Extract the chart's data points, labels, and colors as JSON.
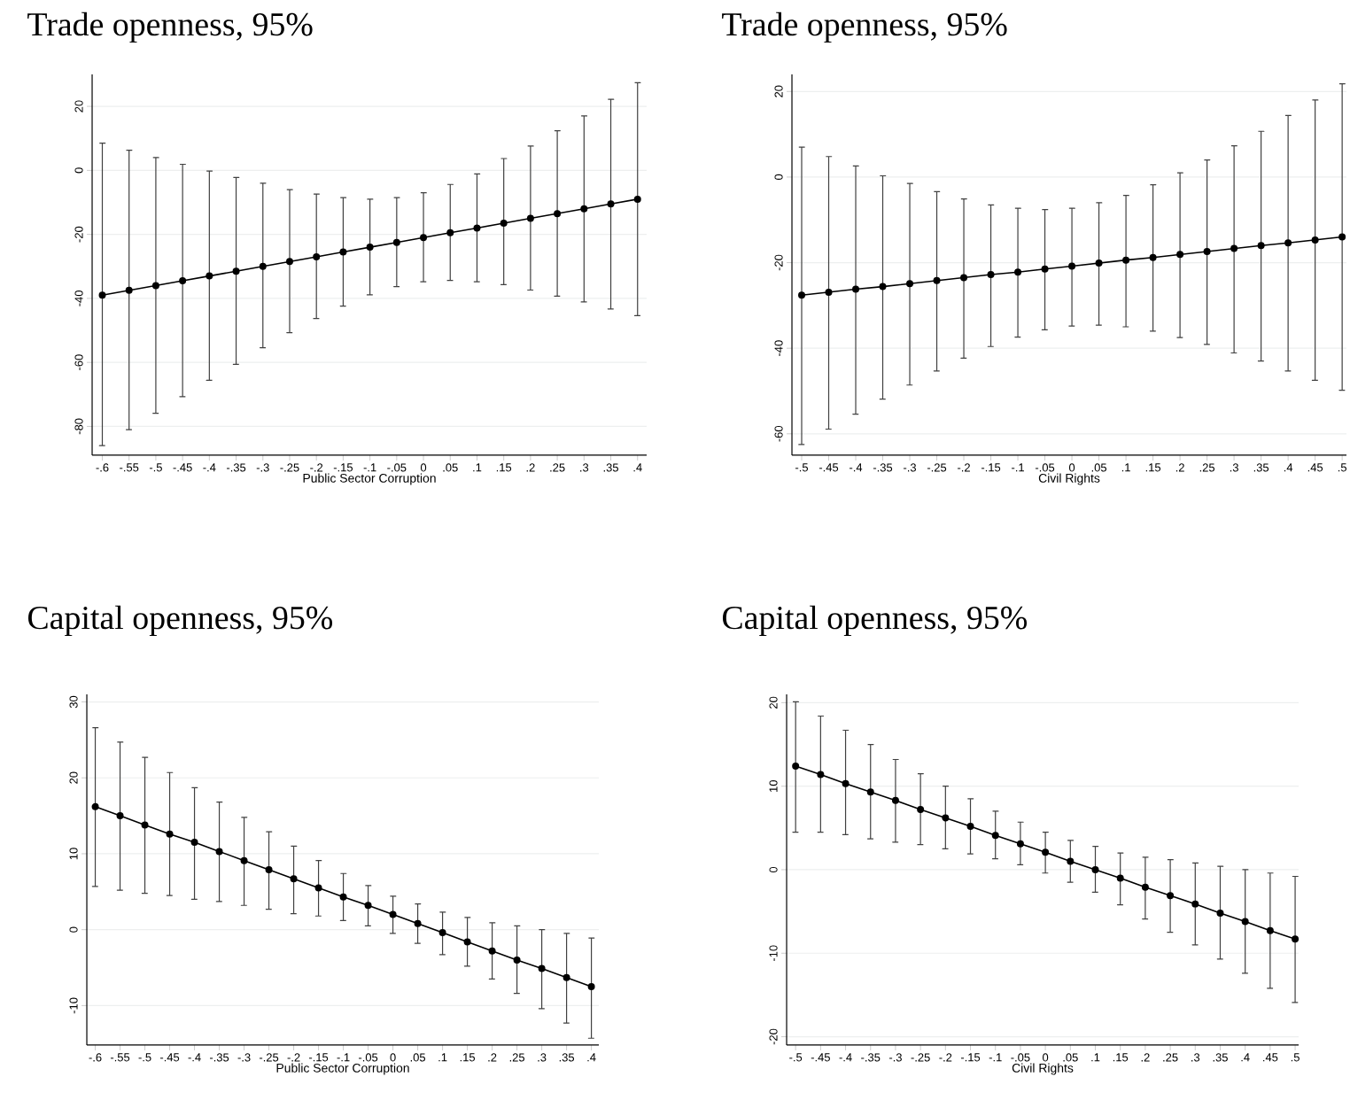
{
  "chart_data": [
    {
      "type": "line",
      "title": "Trade openness, 95%",
      "xlabel": "Public Sector Corruption",
      "marker": "circle",
      "grid": "y",
      "x": [
        -0.6,
        -0.55,
        -0.5,
        -0.45,
        -0.4,
        -0.35,
        -0.3,
        -0.25,
        -0.2,
        -0.15,
        -0.1,
        -0.05,
        0,
        0.05,
        0.1,
        0.15,
        0.2,
        0.25,
        0.3,
        0.35,
        0.4
      ],
      "series": [
        {
          "color": "#000000",
          "values": [
            -39,
            -37.5,
            -36,
            -34.5,
            -33,
            -31.5,
            -30,
            -28.5,
            -27,
            -25.5,
            -24,
            -22.5,
            -21,
            -19.5,
            -18,
            -16.5,
            -15,
            -13.5,
            -12,
            -10.5,
            -9
          ],
          "errors": [
            [
              -86,
              8.5
            ],
            [
              -81,
              6.3
            ],
            [
              -75.9,
              4
            ],
            [
              -70.7,
              1.9
            ],
            [
              -65.6,
              -0.2
            ],
            [
              -60.6,
              -2.2
            ],
            [
              -55.4,
              -4
            ],
            [
              -50.7,
              -6
            ],
            [
              -46.3,
              -7.4
            ],
            [
              -42.4,
              -8.5
            ],
            [
              -38.9,
              -9
            ],
            [
              -36.3,
              -8.5
            ],
            [
              -34.8,
              -7
            ],
            [
              -34.4,
              -4.4
            ],
            [
              -34.8,
              -1.1
            ],
            [
              -35.7,
              3.7
            ],
            [
              -37.4,
              7.6
            ],
            [
              -39.3,
              12.4
            ],
            [
              -41.1,
              17
            ],
            [
              -43.3,
              22.2
            ],
            [
              -45.4,
              27.4
            ]
          ]
        }
      ],
      "xlim": [
        -0.619,
        0.417
      ],
      "ylim": [
        -89,
        30
      ],
      "xticks": [
        {
          "value": -0.6,
          "label": "-.6"
        },
        {
          "value": -0.55,
          "label": "-.55"
        },
        {
          "value": -0.5,
          "label": "-.5"
        },
        {
          "value": -0.45,
          "label": "-.45"
        },
        {
          "value": -0.4,
          "label": "-.4"
        },
        {
          "value": -0.35,
          "label": "-.35"
        },
        {
          "value": -0.3,
          "label": "-.3"
        },
        {
          "value": -0.25,
          "label": "-.25"
        },
        {
          "value": -0.2,
          "label": "-.2"
        },
        {
          "value": -0.15,
          "label": "-.15"
        },
        {
          "value": -0.1,
          "label": "-.1"
        },
        {
          "value": -0.05,
          "label": "-.05"
        },
        0,
        {
          "value": 0.05,
          "label": ".05"
        },
        {
          "value": 0.1,
          "label": ".1"
        },
        {
          "value": 0.15,
          "label": ".15"
        },
        {
          "value": 0.2,
          "label": ".2"
        },
        {
          "value": 0.25,
          "label": ".25"
        },
        {
          "value": 0.3,
          "label": ".3"
        },
        {
          "value": 0.35,
          "label": ".35"
        },
        {
          "value": 0.4,
          "label": ".4"
        }
      ],
      "yticks": [
        -80,
        -60,
        -40,
        -20,
        0,
        20
      ]
    },
    {
      "type": "line",
      "title": "Trade openness, 95%",
      "xlabel": "Civil Rights",
      "marker": "circle",
      "grid": "y",
      "x": [
        -0.5,
        -0.45,
        -0.4,
        -0.35,
        -0.3,
        -0.25,
        -0.2,
        -0.15,
        -0.1,
        -0.05,
        0,
        0.05,
        0.1,
        0.15,
        0.2,
        0.25,
        0.3,
        0.35,
        0.4,
        0.45,
        0.5
      ],
      "series": [
        {
          "color": "#000000",
          "values": [
            -27.6,
            -26.9,
            -26.2,
            -25.6,
            -24.9,
            -24.2,
            -23.5,
            -22.8,
            -22.2,
            -21.5,
            -20.8,
            -20.1,
            -19.4,
            -18.8,
            -18.1,
            -17.4,
            -16.7,
            -16,
            -15.4,
            -14.7,
            -14
          ],
          "errors": [
            [
              -62.5,
              7
            ],
            [
              -58.9,
              4.8
            ],
            [
              -55.4,
              2.6
            ],
            [
              -51.9,
              0.3
            ],
            [
              -48.6,
              -1.5
            ],
            [
              -45.3,
              -3.4
            ],
            [
              -42.3,
              -5.1
            ],
            [
              -39.6,
              -6.5
            ],
            [
              -37.4,
              -7.3
            ],
            [
              -35.7,
              -7.6
            ],
            [
              -34.8,
              -7.3
            ],
            [
              -34.6,
              -6
            ],
            [
              -35,
              -4.3
            ],
            [
              -36,
              -1.8
            ],
            [
              -37.5,
              1
            ],
            [
              -39.1,
              4
            ],
            [
              -41.1,
              7.3
            ],
            [
              -43,
              10.7
            ],
            [
              -45.3,
              14.4
            ],
            [
              -47.5,
              18
            ],
            [
              -49.8,
              21.8
            ]
          ]
        }
      ],
      "xlim": [
        -0.518,
        0.508
      ],
      "ylim": [
        -65,
        24
      ],
      "xticks": [
        {
          "value": -0.5,
          "label": "-.5"
        },
        {
          "value": -0.45,
          "label": "-.45"
        },
        {
          "value": -0.4,
          "label": "-.4"
        },
        {
          "value": -0.35,
          "label": "-.35"
        },
        {
          "value": -0.3,
          "label": "-.3"
        },
        {
          "value": -0.25,
          "label": "-.25"
        },
        {
          "value": -0.2,
          "label": "-.2"
        },
        {
          "value": -0.15,
          "label": "-.15"
        },
        {
          "value": -0.1,
          "label": "-.1"
        },
        {
          "value": -0.05,
          "label": "-.05"
        },
        0,
        {
          "value": 0.05,
          "label": ".05"
        },
        {
          "value": 0.1,
          "label": ".1"
        },
        {
          "value": 0.15,
          "label": ".15"
        },
        {
          "value": 0.2,
          "label": ".2"
        },
        {
          "value": 0.25,
          "label": ".25"
        },
        {
          "value": 0.3,
          "label": ".3"
        },
        {
          "value": 0.35,
          "label": ".35"
        },
        {
          "value": 0.4,
          "label": ".4"
        },
        {
          "value": 0.45,
          "label": ".45"
        },
        {
          "value": 0.5,
          "label": ".5"
        }
      ],
      "yticks": [
        -60,
        -40,
        -20,
        0,
        20
      ]
    },
    {
      "type": "line",
      "title": "Capital openness, 95%",
      "xlabel": "Public Sector Corruption",
      "marker": "circle",
      "grid": "y",
      "x": [
        -0.6,
        -0.55,
        -0.5,
        -0.45,
        -0.4,
        -0.35,
        -0.3,
        -0.25,
        -0.2,
        -0.15,
        -0.1,
        -0.05,
        0,
        0.05,
        0.1,
        0.15,
        0.2,
        0.25,
        0.3,
        0.35,
        0.4
      ],
      "series": [
        {
          "color": "#000000",
          "values": [
            16.2,
            15,
            13.8,
            12.6,
            11.5,
            10.3,
            9.1,
            7.9,
            6.7,
            5.5,
            4.3,
            3.2,
            2,
            0.8,
            -0.4,
            -1.6,
            -2.8,
            -4,
            -5.1,
            -6.3,
            -7.5
          ],
          "errors": [
            [
              5.7,
              26.6
            ],
            [
              5.2,
              24.7
            ],
            [
              4.8,
              22.7
            ],
            [
              4.5,
              20.7
            ],
            [
              4,
              18.7
            ],
            [
              3.7,
              16.8
            ],
            [
              3.2,
              14.8
            ],
            [
              2.7,
              12.9
            ],
            [
              2.1,
              11
            ],
            [
              1.8,
              9.1
            ],
            [
              1.2,
              7.4
            ],
            [
              0.5,
              5.8
            ],
            [
              -0.5,
              4.4
            ],
            [
              -1.8,
              3.4
            ],
            [
              -3.3,
              2.3
            ],
            [
              -4.8,
              1.6
            ],
            [
              -6.5,
              0.9
            ],
            [
              -8.4,
              0.5
            ],
            [
              -10.4,
              0
            ],
            [
              -12.3,
              -0.5
            ],
            [
              -14.3,
              -1.1
            ]
          ]
        }
      ],
      "xlim": [
        -0.617,
        0.415
      ],
      "ylim": [
        -15.2,
        31
      ],
      "xticks": [
        {
          "value": -0.6,
          "label": "-.6"
        },
        {
          "value": -0.55,
          "label": "-.55"
        },
        {
          "value": -0.5,
          "label": "-.5"
        },
        {
          "value": -0.45,
          "label": "-.45"
        },
        {
          "value": -0.4,
          "label": "-.4"
        },
        {
          "value": -0.35,
          "label": "-.35"
        },
        {
          "value": -0.3,
          "label": "-.3"
        },
        {
          "value": -0.25,
          "label": "-.25"
        },
        {
          "value": -0.2,
          "label": "-.2"
        },
        {
          "value": -0.15,
          "label": "-.15"
        },
        {
          "value": -0.1,
          "label": "-.1"
        },
        {
          "value": -0.05,
          "label": "-.05"
        },
        0,
        {
          "value": 0.05,
          "label": ".05"
        },
        {
          "value": 0.1,
          "label": ".1"
        },
        {
          "value": 0.15,
          "label": ".15"
        },
        {
          "value": 0.2,
          "label": ".2"
        },
        {
          "value": 0.25,
          "label": ".25"
        },
        {
          "value": 0.3,
          "label": ".3"
        },
        {
          "value": 0.35,
          "label": ".35"
        },
        {
          "value": 0.4,
          "label": ".4"
        }
      ],
      "yticks": [
        -10,
        0,
        10,
        20,
        30
      ]
    },
    {
      "type": "line",
      "title": "Capital openness, 95%",
      "xlabel": "Civil Rights",
      "marker": "circle",
      "grid": "y",
      "x": [
        -0.5,
        -0.45,
        -0.4,
        -0.35,
        -0.3,
        -0.25,
        -0.2,
        -0.15,
        -0.1,
        -0.05,
        0,
        0.05,
        0.1,
        0.15,
        0.2,
        0.25,
        0.3,
        0.35,
        0.4,
        0.45,
        0.5
      ],
      "series": [
        {
          "color": "#000000",
          "values": [
            12.4,
            11.4,
            10.3,
            9.3,
            8.3,
            7.2,
            6.2,
            5.2,
            4.1,
            3.1,
            2.1,
            1,
            0,
            -1,
            -2.1,
            -3.1,
            -4.1,
            -5.2,
            -6.2,
            -7.3,
            -8.3
          ],
          "errors": [
            [
              4.5,
              20.1
            ],
            [
              4.5,
              18.4
            ],
            [
              4.2,
              16.7
            ],
            [
              3.7,
              15
            ],
            [
              3.3,
              13.2
            ],
            [
              3,
              11.5
            ],
            [
              2.5,
              10
            ],
            [
              1.9,
              8.5
            ],
            [
              1.3,
              7
            ],
            [
              0.6,
              5.7
            ],
            [
              -0.4,
              4.5
            ],
            [
              -1.5,
              3.5
            ],
            [
              -2.7,
              2.8
            ],
            [
              -4.2,
              2
            ],
            [
              -5.9,
              1.5
            ],
            [
              -7.5,
              1.2
            ],
            [
              -9,
              0.8
            ],
            [
              -10.7,
              0.4
            ],
            [
              -12.4,
              0
            ],
            [
              -14.2,
              -0.4
            ],
            [
              -15.9,
              -0.8
            ]
          ]
        }
      ],
      "xlim": [
        -0.518,
        0.507
      ],
      "ylim": [
        -21,
        21
      ],
      "xticks": [
        {
          "value": -0.5,
          "label": "-.5"
        },
        {
          "value": -0.45,
          "label": "-.45"
        },
        {
          "value": -0.4,
          "label": "-.4"
        },
        {
          "value": -0.35,
          "label": "-.35"
        },
        {
          "value": -0.3,
          "label": "-.3"
        },
        {
          "value": -0.25,
          "label": "-.25"
        },
        {
          "value": -0.2,
          "label": "-.2"
        },
        {
          "value": -0.15,
          "label": "-.15"
        },
        {
          "value": -0.1,
          "label": "-.1"
        },
        {
          "value": -0.05,
          "label": "-.05"
        },
        0,
        {
          "value": 0.05,
          "label": ".05"
        },
        {
          "value": 0.1,
          "label": ".1"
        },
        {
          "value": 0.15,
          "label": ".15"
        },
        {
          "value": 0.2,
          "label": ".2"
        },
        {
          "value": 0.25,
          "label": ".25"
        },
        {
          "value": 0.3,
          "label": ".3"
        },
        {
          "value": 0.35,
          "label": ".35"
        },
        {
          "value": 0.4,
          "label": ".4"
        },
        {
          "value": 0.45,
          "label": ".45"
        },
        {
          "value": 0.5,
          "label": ".5"
        }
      ],
      "yticks": [
        -20,
        -10,
        0,
        10,
        20
      ]
    }
  ]
}
